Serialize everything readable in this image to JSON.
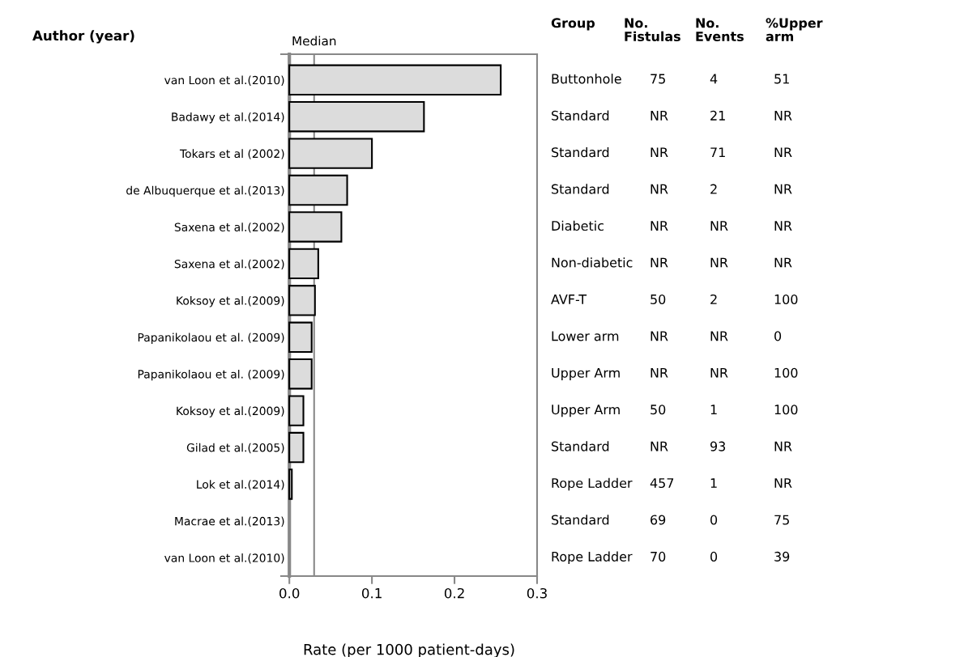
{
  "chart_data": {
    "type": "bar",
    "orientation": "horizontal",
    "xlabel": "Rate (per 1000 patient-days)",
    "ylabel": "Author (year)",
    "categories": [
      "van Loon et al.(2010)",
      "Badawy et al.(2014)",
      "Tokars et al (2002)",
      "de Albuquerque et al.(2013)",
      "Saxena et al.(2002)",
      "Saxena et al.(2002)",
      "Koksoy et al.(2009)",
      "Papanikolaou et al. (2009)",
      "Papanikolaou et al. (2009)",
      "Koksoy et al.(2009)",
      "Gilad et al.(2005)",
      "Lok et al.(2014)",
      "Macrae et al.(2013)",
      "van Loon et al.(2010)"
    ],
    "values": [
      0.256,
      0.163,
      0.1,
      0.07,
      0.063,
      0.035,
      0.031,
      0.027,
      0.027,
      0.017,
      0.017,
      0.003,
      0,
      0
    ],
    "color": "#dcdcdc",
    "xlim": [
      -0.01,
      0.3
    ],
    "xticks": [
      {
        "value": 0,
        "label": "0.0"
      },
      0.1,
      0.2,
      0.3
    ],
    "ref_lines": [
      {
        "axis": "x",
        "value": 0.03,
        "label": "Median",
        "color": "#888888"
      }
    ],
    "grid": false,
    "legend": false,
    "annotations": [
      "Group",
      "No.\nFistulas",
      "No.\nEvents",
      "%Upper\narm",
      "Buttonhole",
      "75",
      "4",
      "51",
      "Standard",
      "NR",
      "21",
      "NR",
      "Standard",
      "NR",
      "71",
      "NR",
      "Standard",
      "NR",
      "2",
      "NR",
      "Diabetic",
      "NR",
      "NR",
      "NR",
      "Non-diabetic",
      "NR",
      "NR",
      "NR",
      "AVF-T",
      "50",
      "2",
      "100",
      "Lower arm",
      "NR",
      "NR",
      "0",
      "Upper Arm",
      "NR",
      "NR",
      "100",
      "Upper Arm",
      "50",
      "1",
      "100",
      "Standard",
      "NR",
      "93",
      "NR",
      "Rope Ladder",
      "457",
      "1",
      "NR",
      "Standard",
      "69",
      "0",
      "75",
      "Rope Ladder",
      "70",
      "0",
      "39"
    ]
  }
}
